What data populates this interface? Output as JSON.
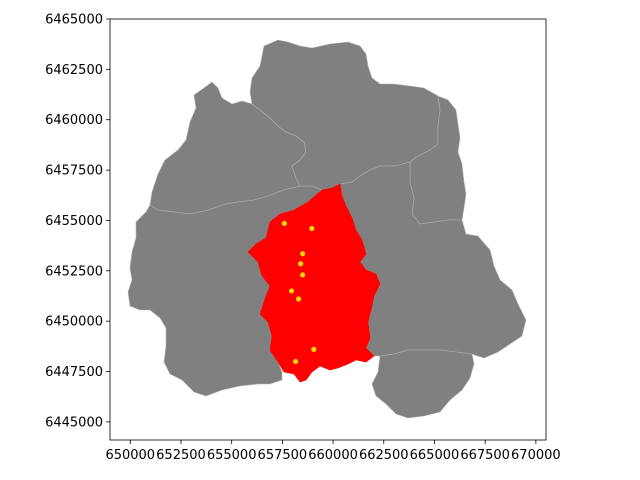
{
  "chart_data": {
    "type": "map",
    "xlim": [
      649000,
      670500
    ],
    "ylim": [
      6444100,
      6465000
    ],
    "x_ticks": [
      {
        "value": 650000,
        "label": "650000"
      },
      {
        "value": 652500,
        "label": "652500"
      },
      {
        "value": 655000,
        "label": "655000"
      },
      {
        "value": 657500,
        "label": "657500"
      },
      {
        "value": 660000,
        "label": "660000"
      },
      {
        "value": 662500,
        "label": "662500"
      },
      {
        "value": 665000,
        "label": "665000"
      },
      {
        "value": 667500,
        "label": "667500"
      },
      {
        "value": 670000,
        "label": "670000"
      }
    ],
    "y_ticks": [
      {
        "value": 6445000,
        "label": "6445000"
      },
      {
        "value": 6447500,
        "label": "6447500"
      },
      {
        "value": 6450000,
        "label": "6450000"
      },
      {
        "value": 6452500,
        "label": "6452500"
      },
      {
        "value": 6455000,
        "label": "6455000"
      },
      {
        "value": 6457500,
        "label": "6457500"
      },
      {
        "value": 6460000,
        "label": "6460000"
      },
      {
        "value": 6462500,
        "label": "6462500"
      },
      {
        "value": 6465000,
        "label": "6465000"
      }
    ],
    "colors": {
      "neighbor_fill": "#808080",
      "neighbor_border": "#b0b0b0",
      "highlight_fill": "#ff0000",
      "point_fill": "#ffd700"
    },
    "points": [
      {
        "x": 657600,
        "y": 6454850
      },
      {
        "x": 658950,
        "y": 6454600
      },
      {
        "x": 658500,
        "y": 6453350
      },
      {
        "x": 658400,
        "y": 6452850
      },
      {
        "x": 658500,
        "y": 6452300
      },
      {
        "x": 657950,
        "y": 6451500
      },
      {
        "x": 658300,
        "y": 6451100
      },
      {
        "x": 659050,
        "y": 6448600
      },
      {
        "x": 658150,
        "y": 6448000
      }
    ]
  }
}
